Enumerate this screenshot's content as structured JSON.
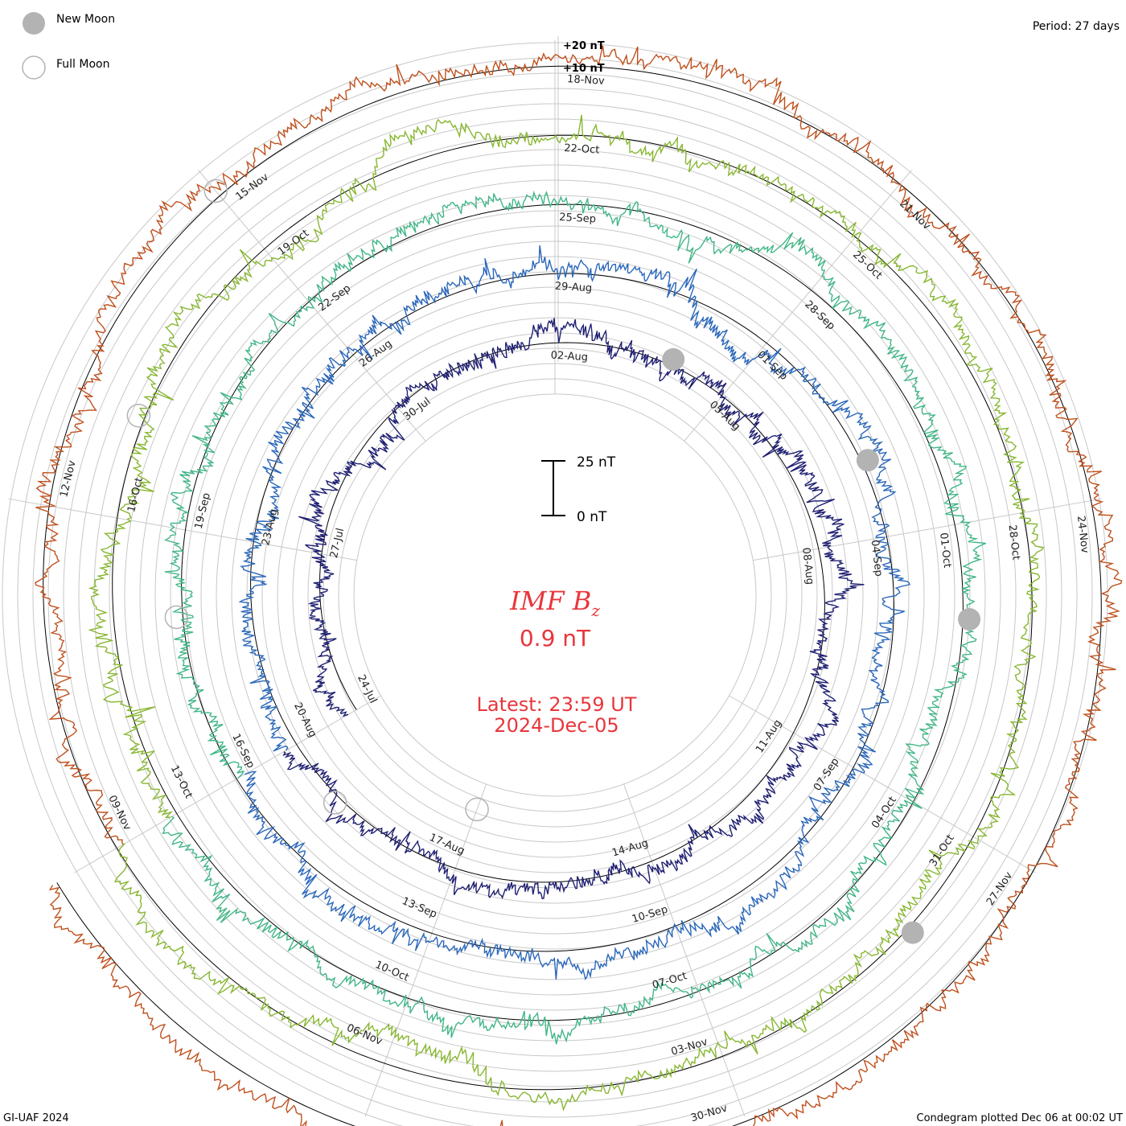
{
  "header": {
    "period_label": "Period: 27 days"
  },
  "legend": {
    "new_moon_label": "New Moon",
    "full_moon_label": "Full Moon",
    "new_moon_color": "#b3b3b3",
    "full_moon_color": "#b3b3b3"
  },
  "footer": {
    "credit": "GI-UAF 2024",
    "plotted": "Condegram plotted Dec 06 at 00:02 UT"
  },
  "scale_bar": {
    "top_label": "25 nT",
    "bottom_label": "0 nT"
  },
  "center": {
    "title_main": "IMF B",
    "title_sub": "z",
    "value": "0.9 nT",
    "latest_time": "Latest: 23:59 UT",
    "latest_date": "2024-Dec-05",
    "color": "#e8363c"
  },
  "chart_data": {
    "type": "condegram-spiral",
    "title": "IMF Bz",
    "units": "nT",
    "period_days": 27,
    "start_date": "2024-07-24",
    "end_date": "2024-12-05",
    "reference_levels": [
      "+20 nT",
      "+10 nT"
    ],
    "ring_date_labels": [
      [
        "24-Jul",
        "27-Jul",
        "30-Jul",
        "02-Aug",
        "05-Aug",
        "08-Aug",
        "11-Aug",
        "14-Aug",
        "17-Aug"
      ],
      [
        "20-Aug",
        "23-Aug",
        "26-Aug",
        "29-Aug",
        "01-Sep",
        "04-Sep",
        "07-Sep",
        "10-Sep",
        "13-Sep"
      ],
      [
        "16-Sep",
        "19-Sep",
        "22-Sep",
        "25-Sep",
        "28-Sep",
        "01-Oct",
        "04-Oct",
        "07-Oct",
        "10-Oct"
      ],
      [
        "13-Oct",
        "16-Oct",
        "19-Oct",
        "22-Oct",
        "25-Oct",
        "28-Oct",
        "31-Oct",
        "03-Nov",
        "06-Nov"
      ],
      [
        "09-Nov",
        "12-Nov",
        "15-Nov",
        "18-Nov",
        "21-Nov",
        "24-Nov",
        "27-Nov",
        "30-Nov"
      ]
    ],
    "ring_colors": [
      "#1a0f4a",
      "#2a3fbf",
      "#2ab0b0",
      "#6ec23a",
      "#b8a323",
      "#c2541a"
    ],
    "final_partial_color": "#c41a1a",
    "new_moon_dates": [
      "2024-08-04",
      "2024-09-03",
      "2024-10-02",
      "2024-11-01"
    ],
    "full_moon_dates": [
      "2024-07-21",
      "2024-08-19",
      "2024-09-18",
      "2024-10-17",
      "2024-11-15"
    ],
    "latest_value": 0.9
  }
}
